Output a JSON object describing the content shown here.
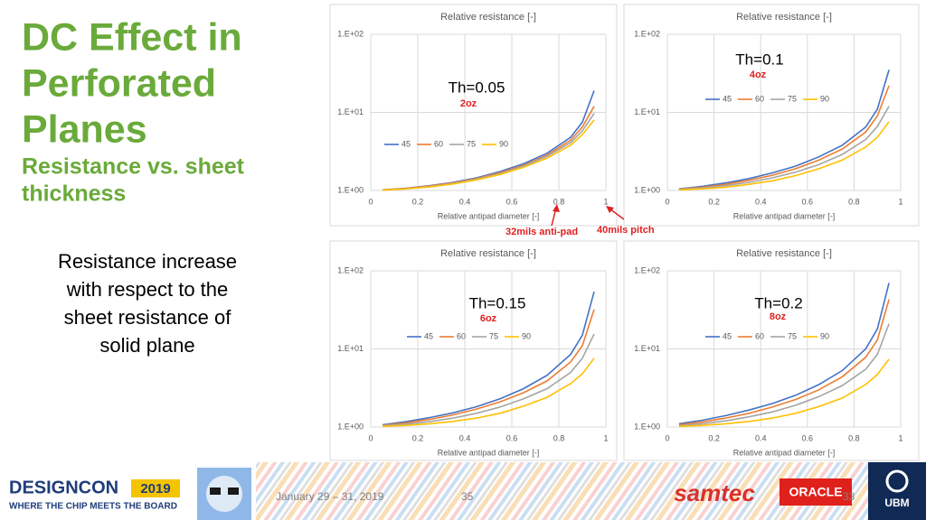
{
  "slide": {
    "title_lines": [
      "DC Effect in",
      "Perforated",
      "Planes"
    ],
    "subtitle_lines": [
      "Resistance vs. sheet",
      "thickness"
    ],
    "body_lines": [
      "Resistance increase",
      "with respect to the",
      "sheet resistance of",
      "solid plane"
    ],
    "callouts": [
      "32mils anti-pad",
      "40mils pitch"
    ],
    "footer": {
      "date": "January 29 – 31, 2019",
      "page": "35",
      "page_overlap": "33",
      "logo_designcon": "DESIGNCON",
      "logo_year": "2019",
      "logo_tagline": "WHERE THE CHIP MEETS THE BOARD",
      "logo_samtec": "samtec",
      "logo_oracle": "ORACLE",
      "logo_ubm": "UBM"
    }
  },
  "chart_data": [
    {
      "type": "line",
      "title": "Relative resistance [-]",
      "x_label": "Relative antipad diameter [-]",
      "annotation": "Th=0.05",
      "note": "2oz",
      "yscale": "log",
      "grid": true,
      "xlim": [
        0,
        1
      ],
      "xticks": [
        0,
        0.2,
        0.4,
        0.6,
        0.8,
        1
      ],
      "ylim": [
        1,
        100
      ],
      "yticks": [
        {
          "value": 1,
          "label": "1.E+00"
        },
        {
          "value": 10,
          "label": "1.E+01"
        },
        {
          "value": 100,
          "label": "1.E+02"
        }
      ],
      "x": [
        0.05,
        0.15,
        0.25,
        0.35,
        0.45,
        0.55,
        0.65,
        0.75,
        0.85,
        0.9,
        0.95
      ],
      "series": [
        {
          "name": "45",
          "color": "#4472c4",
          "values": [
            1.02,
            1.07,
            1.15,
            1.27,
            1.45,
            1.75,
            2.2,
            3.0,
            4.8,
            7.5,
            19
          ]
        },
        {
          "name": "60",
          "color": "#ed7d31",
          "values": [
            1.02,
            1.06,
            1.14,
            1.25,
            1.42,
            1.7,
            2.1,
            2.85,
            4.4,
            6.5,
            12
          ]
        },
        {
          "name": "75",
          "color": "#a5a5a5",
          "values": [
            1.01,
            1.05,
            1.12,
            1.23,
            1.4,
            1.65,
            2.05,
            2.75,
            4.1,
            5.8,
            9.7
          ]
        },
        {
          "name": "90",
          "color": "#ffc000",
          "values": [
            1.01,
            1.05,
            1.11,
            1.21,
            1.37,
            1.6,
            1.98,
            2.6,
            3.8,
            5.2,
            8
          ]
        }
      ]
    },
    {
      "type": "line",
      "title": "Relative resistance [-]",
      "x_label": "Relative antipad diameter [-]",
      "annotation": "Th=0.1",
      "note": "4oz",
      "yscale": "log",
      "grid": true,
      "xlim": [
        0,
        1
      ],
      "xticks": [
        0,
        0.2,
        0.4,
        0.6,
        0.8,
        1
      ],
      "ylim": [
        1,
        100
      ],
      "yticks": [
        {
          "value": 1,
          "label": "1.E+00"
        },
        {
          "value": 10,
          "label": "1.E+01"
        },
        {
          "value": 100,
          "label": "1.E+02"
        }
      ],
      "x": [
        0.05,
        0.15,
        0.25,
        0.35,
        0.45,
        0.55,
        0.65,
        0.75,
        0.85,
        0.9,
        0.95
      ],
      "series": [
        {
          "name": "45",
          "color": "#4472c4",
          "values": [
            1.05,
            1.13,
            1.25,
            1.42,
            1.68,
            2.05,
            2.7,
            3.8,
            6.5,
            11,
            35
          ]
        },
        {
          "name": "60",
          "color": "#ed7d31",
          "values": [
            1.04,
            1.1,
            1.2,
            1.35,
            1.57,
            1.9,
            2.45,
            3.4,
            5.6,
            9,
            22
          ]
        },
        {
          "name": "75",
          "color": "#a5a5a5",
          "values": [
            1.03,
            1.08,
            1.15,
            1.27,
            1.45,
            1.72,
            2.15,
            2.9,
            4.5,
            6.6,
            12
          ]
        },
        {
          "name": "90",
          "color": "#ffc000",
          "values": [
            1.02,
            1.05,
            1.1,
            1.2,
            1.33,
            1.55,
            1.9,
            2.45,
            3.6,
            4.8,
            7.6
          ]
        }
      ]
    },
    {
      "type": "line",
      "title": "Relative resistance [-]",
      "x_label": "Relative antipad diameter [-]",
      "annotation": "Th=0.15",
      "note": "6oz",
      "yscale": "log",
      "grid": true,
      "xlim": [
        0,
        1
      ],
      "xticks": [
        0,
        0.2,
        0.4,
        0.6,
        0.8,
        1
      ],
      "ylim": [
        1,
        100
      ],
      "yticks": [
        {
          "value": 1,
          "label": "1.E+00"
        },
        {
          "value": 10,
          "label": "1.E+01"
        },
        {
          "value": 100,
          "label": "1.E+02"
        }
      ],
      "x": [
        0.05,
        0.15,
        0.25,
        0.35,
        0.45,
        0.55,
        0.65,
        0.75,
        0.85,
        0.9,
        0.95
      ],
      "series": [
        {
          "name": "45",
          "color": "#4472c4",
          "values": [
            1.07,
            1.17,
            1.32,
            1.52,
            1.82,
            2.3,
            3.1,
            4.6,
            8.5,
            15,
            54
          ]
        },
        {
          "name": "60",
          "color": "#ed7d31",
          "values": [
            1.05,
            1.13,
            1.25,
            1.43,
            1.7,
            2.1,
            2.75,
            3.9,
            6.8,
            11,
            32
          ]
        },
        {
          "name": "75",
          "color": "#a5a5a5",
          "values": [
            1.04,
            1.09,
            1.17,
            1.3,
            1.5,
            1.8,
            2.3,
            3.1,
            5,
            7.6,
            15.5
          ]
        },
        {
          "name": "90",
          "color": "#ffc000",
          "values": [
            1.02,
            1.05,
            1.1,
            1.18,
            1.3,
            1.5,
            1.85,
            2.4,
            3.6,
            4.8,
            7.6
          ]
        }
      ]
    },
    {
      "type": "line",
      "title": "Relative resistance [-]",
      "x_label": "Relative antipad diameter [-]",
      "annotation": "Th=0.2",
      "note": "8oz",
      "yscale": "log",
      "grid": true,
      "xlim": [
        0,
        1
      ],
      "xticks": [
        0,
        0.2,
        0.4,
        0.6,
        0.8,
        1
      ],
      "ylim": [
        1,
        100
      ],
      "yticks": [
        {
          "value": 1,
          "label": "1.E+00"
        },
        {
          "value": 10,
          "label": "1.E+01"
        },
        {
          "value": 100,
          "label": "1.E+02"
        }
      ],
      "x": [
        0.05,
        0.15,
        0.25,
        0.35,
        0.45,
        0.55,
        0.65,
        0.75,
        0.85,
        0.9,
        0.95
      ],
      "series": [
        {
          "name": "45",
          "color": "#4472c4",
          "values": [
            1.1,
            1.22,
            1.4,
            1.65,
            2.0,
            2.55,
            3.5,
            5.3,
            10,
            18,
            70
          ]
        },
        {
          "name": "60",
          "color": "#ed7d31",
          "values": [
            1.07,
            1.16,
            1.3,
            1.5,
            1.8,
            2.25,
            3.0,
            4.4,
            7.8,
            13,
            43
          ]
        },
        {
          "name": "75",
          "color": "#a5a5a5",
          "values": [
            1.04,
            1.1,
            1.2,
            1.35,
            1.56,
            1.9,
            2.45,
            3.4,
            5.5,
            8.5,
            21
          ]
        },
        {
          "name": "90",
          "color": "#ffc000",
          "values": [
            1.02,
            1.05,
            1.1,
            1.18,
            1.3,
            1.5,
            1.83,
            2.35,
            3.5,
            4.7,
            7.4
          ]
        }
      ]
    }
  ]
}
